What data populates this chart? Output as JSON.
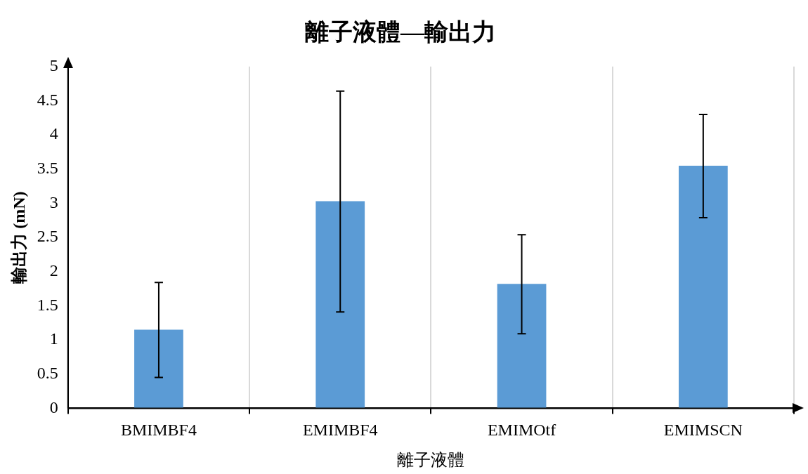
{
  "chart_data": {
    "type": "bar",
    "title": "離子液體—輸出力",
    "xlabel": "離子液體",
    "ylabel": "輸出力 (mN)",
    "categories": [
      "BMIMBF4",
      "EMIMBF4",
      "EMIMOtf",
      "EMIMSCN"
    ],
    "values": [
      1.15,
      3.03,
      1.82,
      3.55
    ],
    "color": "#5b9bd5",
    "errors": [
      [
        0.45,
        1.84
      ],
      [
        1.41,
        4.64
      ],
      [
        1.09,
        2.54
      ],
      [
        2.79,
        4.3
      ]
    ],
    "ylim": [
      0,
      5
    ],
    "yticks": [
      0,
      0.5,
      1,
      1.5,
      2,
      2.5,
      3,
      3.5,
      4,
      4.5,
      5
    ],
    "grid": "x",
    "legend": false
  }
}
